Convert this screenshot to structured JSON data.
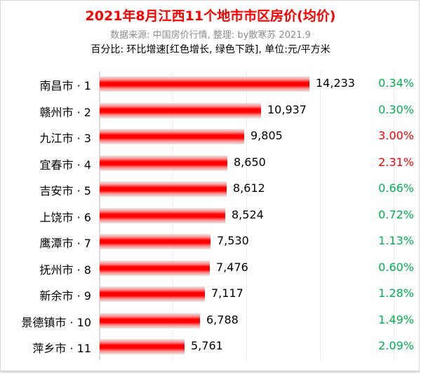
{
  "header": {
    "title": "2021年8月江西11个地市市区房价(均价)",
    "subtitle": "数据来源: 中国房价行情, 整理: by散寒苏 2021.9",
    "note": "百分比: 环比增速[红色增长, 绿色下跌], 单位:元/平方米"
  },
  "colors": {
    "title": "#ff0000",
    "bar": "#ff0000",
    "increase": "#ff0000",
    "decrease": "#00b050",
    "subtitle": "#8c8c8c"
  },
  "chart_data": {
    "type": "bar",
    "orientation": "horizontal",
    "title": "2021年8月江西11个地市市区房价(均价)",
    "subtitle": "数据来源: 中国房价行情, 整理: by散寒苏 2021.9",
    "annotation": "百分比: 环比增速[红色增长, 绿色下跌], 单位:元/平方米",
    "xlabel": "",
    "ylabel": "",
    "xlim": [
      0,
      20000
    ],
    "grid": true,
    "gridline_step": 5000,
    "categories": [
      "南昌市 · 1",
      "赣州市 · 2",
      "九江市 · 3",
      "宜春市 · 4",
      "吉安市 · 5",
      "上饶市 · 6",
      "鹰潭市 · 7",
      "抚州市 · 8",
      "新余市 · 9",
      "景德镇市 · 10",
      "萍乡市 · 11"
    ],
    "values": [
      14233,
      10937,
      9805,
      8650,
      8612,
      8524,
      7530,
      7476,
      7117,
      6788,
      5761
    ],
    "value_labels": [
      "14,233",
      "10,937",
      "9,805",
      "8,650",
      "8,612",
      "8,524",
      "7,530",
      "7,476",
      "7,117",
      "6,788",
      "5,761"
    ],
    "mom_change_labels": [
      "0.34%",
      "0.30%",
      "3.00%",
      "2.31%",
      "0.66%",
      "0.72%",
      "1.13%",
      "0.60%",
      "1.28%",
      "1.49%",
      "2.09%"
    ],
    "mom_change_colors": [
      "green",
      "green",
      "red",
      "red",
      "green",
      "green",
      "green",
      "green",
      "green",
      "green",
      "green"
    ]
  },
  "rows": [
    {
      "label": "南昌市 · 1",
      "value": 14233,
      "value_label": "14,233",
      "pct": "0.34%",
      "color": "#00b050"
    },
    {
      "label": "赣州市 · 2",
      "value": 10937,
      "value_label": "10,937",
      "pct": "0.30%",
      "color": "#00b050"
    },
    {
      "label": "九江市 · 3",
      "value": 9805,
      "value_label": "9,805",
      "pct": "3.00%",
      "color": "#ff0000"
    },
    {
      "label": "宜春市 · 4",
      "value": 8650,
      "value_label": "8,650",
      "pct": "2.31%",
      "color": "#ff0000"
    },
    {
      "label": "吉安市 · 5",
      "value": 8612,
      "value_label": "8,612",
      "pct": "0.66%",
      "color": "#00b050"
    },
    {
      "label": "上饶市 · 6",
      "value": 8524,
      "value_label": "8,524",
      "pct": "0.72%",
      "color": "#00b050"
    },
    {
      "label": "鹰潭市 · 7",
      "value": 7530,
      "value_label": "7,530",
      "pct": "1.13%",
      "color": "#00b050"
    },
    {
      "label": "抚州市 · 8",
      "value": 7476,
      "value_label": "7,476",
      "pct": "0.60%",
      "color": "#00b050"
    },
    {
      "label": "新余市 · 9",
      "value": 7117,
      "value_label": "7,117",
      "pct": "1.28%",
      "color": "#00b050"
    },
    {
      "label": "景德镇市 · 10",
      "value": 6788,
      "value_label": "6,788",
      "pct": "1.49%",
      "color": "#00b050"
    },
    {
      "label": "萍乡市 · 11",
      "value": 5761,
      "value_label": "5,761",
      "pct": "2.09%",
      "color": "#00b050"
    }
  ]
}
